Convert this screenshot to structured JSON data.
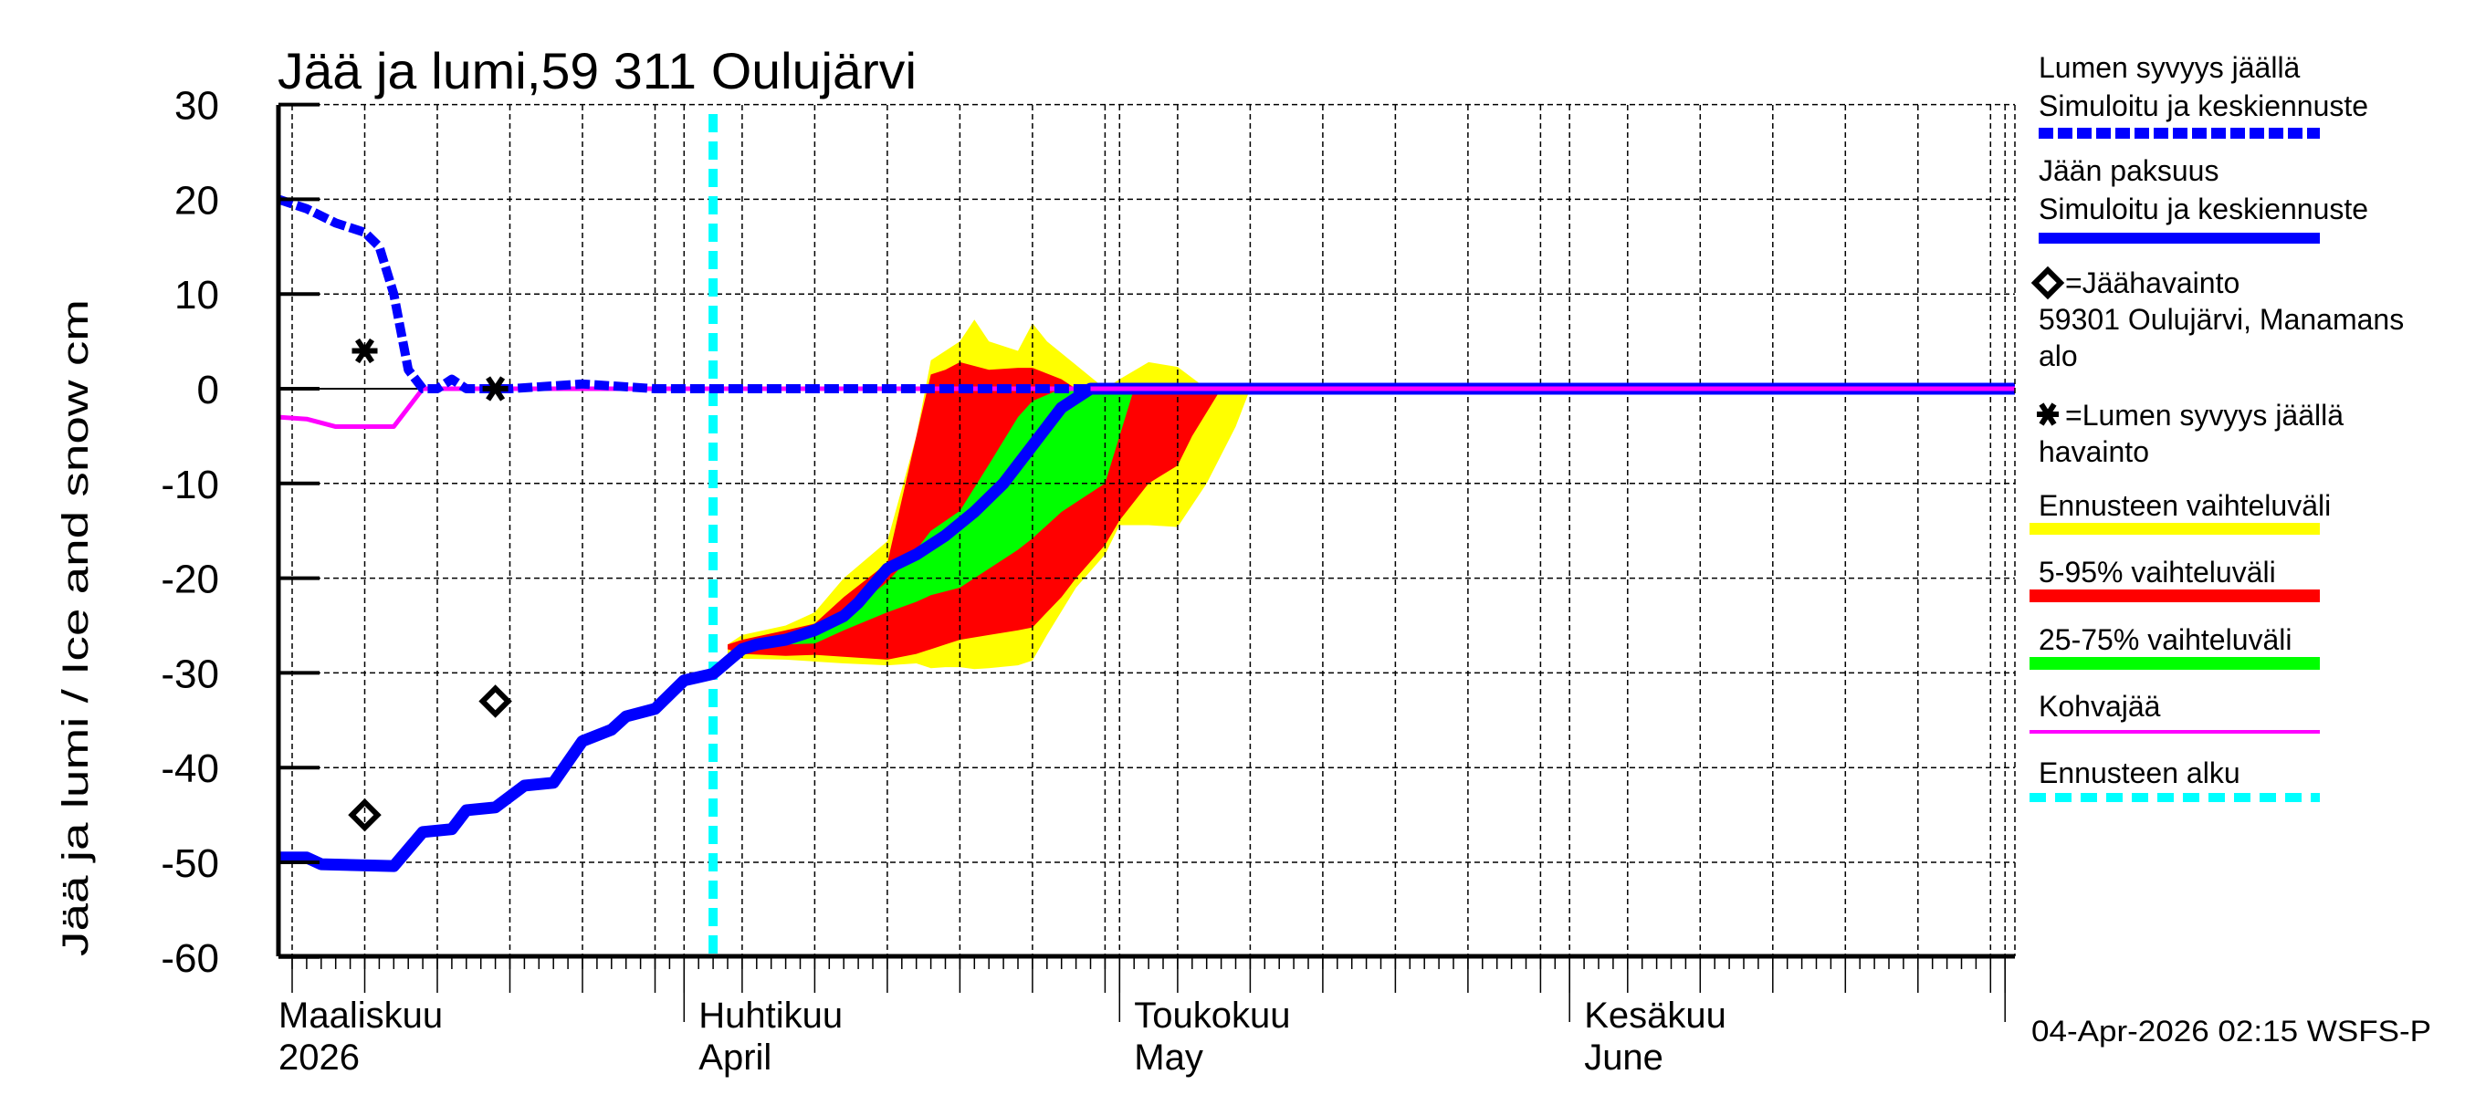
{
  "chart_data": {
    "type": "area",
    "title": "Jää ja lumi,59 311 Oulujärvi",
    "ylabel": "Jää ja lumi / Ice and snow    cm",
    "xlabel": "",
    "ylim": [
      -60,
      30
    ],
    "yticks": [
      30,
      20,
      10,
      0,
      -10,
      -20,
      -30,
      -40,
      -50,
      -60
    ],
    "x_range": [
      "2026-03-04",
      "2026-07-02"
    ],
    "grid": true,
    "x_month_labels": [
      {
        "line1": "Maaliskuu",
        "line2": "2026",
        "date": "2026-03-01"
      },
      {
        "line1": "Huhtikuu",
        "line2": "April",
        "date": "2026-04-01"
      },
      {
        "line1": "Toukokuu",
        "line2": "May",
        "date": "2026-05-01"
      },
      {
        "line1": "Kesäkuu",
        "line2": "June",
        "date": "2026-06-01"
      }
    ],
    "forecast_start": "2026-04-03",
    "series": [
      {
        "name": "Lumen syvyys jäällä – Simuloitu ja keskiennuste",
        "style": "dashed",
        "color": "#0000ff",
        "x": [
          "03-04",
          "03-06",
          "03-08",
          "03-09",
          "03-10",
          "03-11",
          "03-12",
          "03-13",
          "03-14",
          "03-15",
          "03-16",
          "03-17",
          "03-18",
          "03-20",
          "03-25",
          "03-30",
          "04-05",
          "07-02"
        ],
        "values": [
          20,
          19,
          17.5,
          17,
          16.5,
          15,
          10,
          2,
          0,
          0,
          1,
          0,
          0,
          0,
          0.5,
          0,
          0,
          0
        ]
      },
      {
        "name": "Jään paksuus – Simuloitu ja keskiennuste",
        "style": "solid",
        "color": "#0000ff",
        "x": [
          "03-04",
          "03-06",
          "03-07",
          "03-12",
          "03-14",
          "03-16",
          "03-17",
          "03-19",
          "03-21",
          "03-23",
          "03-25",
          "03-27",
          "03-28",
          "03-30",
          "04-01",
          "04-03",
          "04-05",
          "04-06",
          "04-08",
          "04-10",
          "04-12",
          "04-13",
          "04-15",
          "04-17",
          "04-19",
          "04-21",
          "04-23",
          "04-25",
          "04-27",
          "04-29",
          "04-30",
          "07-02"
        ],
        "values": [
          -49.5,
          -49.5,
          -50.2,
          -50.4,
          -46.8,
          -46.5,
          -44.5,
          -44.2,
          -41.9,
          -41.6,
          -37.2,
          -36,
          -34.6,
          -33.8,
          -30.8,
          -30.1,
          -27.5,
          -27,
          -26.5,
          -25.5,
          -24,
          -22.6,
          -19,
          -17.5,
          -15.5,
          -13,
          -10,
          -6,
          -2,
          0,
          0,
          0
        ]
      },
      {
        "name": "Kohvajää",
        "style": "solid",
        "color": "#ff00ff",
        "x": [
          "03-04",
          "03-06",
          "03-08",
          "03-12",
          "03-14",
          "07-02"
        ],
        "values": [
          -3,
          -3.2,
          -4,
          -4,
          0,
          0
        ]
      }
    ],
    "bands": [
      {
        "name": "Ennusteen vaihteluväli",
        "color": "#ffff00",
        "x": [
          "04-04",
          "04-05",
          "04-08",
          "04-10",
          "04-12",
          "04-15",
          "04-17",
          "04-18",
          "04-19",
          "04-20",
          "04-21",
          "04-22",
          "04-24",
          "04-25",
          "04-26",
          "04-28",
          "04-30",
          "05-01",
          "05-03",
          "05-05",
          "05-07",
          "05-09",
          "05-10"
        ],
        "upper": [
          -27,
          -26,
          -25,
          -23.6,
          -20,
          -16.1,
          -5,
          3,
          4,
          5,
          7.3,
          5,
          4,
          6.9,
          5,
          2.5,
          0,
          1,
          2.8,
          2.3,
          0,
          0,
          0
        ],
        "lower": [
          -28,
          -28.5,
          -28.6,
          -28.8,
          -29,
          -29.2,
          -29,
          -29.5,
          -29.4,
          -29.4,
          -29.6,
          -29.5,
          -29.2,
          -28.7,
          -26,
          -21,
          -17.5,
          -14.4,
          -14.4,
          -14.6,
          -10,
          -4,
          0
        ]
      },
      {
        "name": "5-95% vaihteluväli",
        "color": "#ff0000",
        "x": [
          "04-04",
          "04-05",
          "04-08",
          "04-10",
          "04-12",
          "04-15",
          "04-17",
          "04-18",
          "04-19",
          "04-20",
          "04-22",
          "04-24",
          "04-25",
          "04-27",
          "04-28",
          "04-30",
          "05-01",
          "05-03",
          "05-05",
          "05-06",
          "05-08"
        ],
        "upper": [
          -27,
          -26.5,
          -25.5,
          -24.8,
          -22,
          -18.4,
          -5,
          1.5,
          2,
          2.8,
          2,
          2.2,
          2.2,
          1,
          0,
          0,
          0,
          0,
          0,
          0,
          0
        ],
        "lower": [
          -27.5,
          -28,
          -28.2,
          -28.1,
          -28.3,
          -28.6,
          -28,
          -27.5,
          -27,
          -26.5,
          -26,
          -25.5,
          -25.2,
          -22,
          -20,
          -16.5,
          -13.9,
          -10,
          -8.1,
          -5,
          0
        ]
      },
      {
        "name": "25-75% vaihteluväli",
        "color": "#00ff00",
        "x": [
          "04-05",
          "04-08",
          "04-10",
          "04-12",
          "04-15",
          "04-17",
          "04-18",
          "04-20",
          "04-22",
          "04-24",
          "04-25",
          "04-27",
          "04-29",
          "04-30",
          "05-01",
          "05-02"
        ],
        "upper": [
          -27,
          -26.5,
          -25.8,
          -24,
          -20.4,
          -17,
          -15,
          -12.9,
          -8,
          -3,
          -1.3,
          0,
          0,
          0,
          0,
          0
        ],
        "lower": [
          -27.3,
          -27,
          -26.9,
          -25.5,
          -23.6,
          -22.5,
          -21.8,
          -21,
          -19,
          -17,
          -15.8,
          -13,
          -11,
          -10,
          -5,
          0
        ]
      }
    ],
    "observations": [
      {
        "name": "Jäähavainto",
        "marker": "diamond",
        "points": [
          {
            "date": "03-10",
            "value": -45
          },
          {
            "date": "03-19",
            "value": -33
          }
        ]
      },
      {
        "name": "Lumen syvyys jäällä havainto",
        "marker": "asterisk",
        "points": [
          {
            "date": "03-10",
            "value": 4
          },
          {
            "date": "03-19",
            "value": 0
          }
        ]
      }
    ]
  },
  "legend": {
    "items": [
      {
        "line1": "Lumen syvyys jäällä",
        "line2": "Simuloitu ja keskiennuste",
        "swatch": "dashed-blue"
      },
      {
        "line1": "Jään paksuus",
        "line2": "Simuloitu ja keskiennuste",
        "swatch": "solid-blue"
      },
      {
        "line1": "=Jäähavainto",
        "line2": "59301 Oulujärvi, Manamans",
        "line3": "alo",
        "swatch": "diamond"
      },
      {
        "line1": "=Lumen syvyys jäällä",
        "line2": "havainto",
        "swatch": "asterisk"
      },
      {
        "line1": "Ennusteen vaihteluväli",
        "swatch": "yellow"
      },
      {
        "line1": "5-95% vaihteluväli",
        "swatch": "red"
      },
      {
        "line1": "25-75% vaihteluväli",
        "swatch": "green"
      },
      {
        "line1": "Kohvajää",
        "swatch": "magenta"
      },
      {
        "line1": "Ennusteen alku",
        "swatch": "dashed-cyan"
      }
    ]
  },
  "footer": {
    "timestamp": "04-Apr-2026 02:15 WSFS-P"
  },
  "colors": {
    "snow": "#0000ff",
    "ice": "#0000ff",
    "slush": "#ff00ff",
    "range_full": "#ffff00",
    "range_5_95": "#ff0000",
    "range_25_75": "#00ff00",
    "forecast_start": "#00ffff",
    "axis": "#000000"
  }
}
